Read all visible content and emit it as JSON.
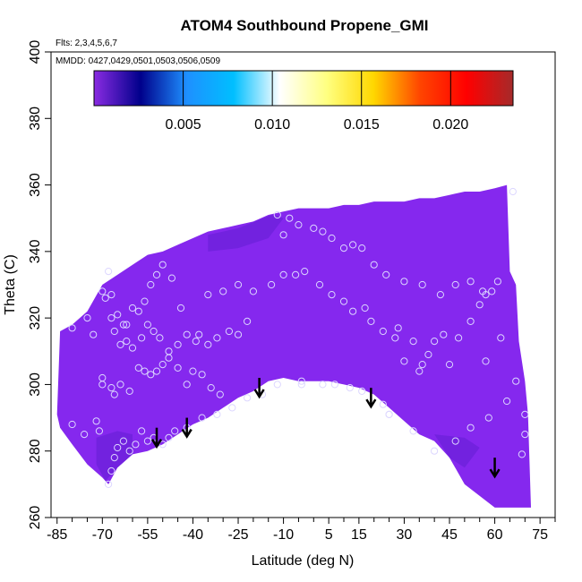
{
  "chart_data": {
    "type": "heatmap",
    "title": "ATOM4 Southbound Propene_GMI",
    "annotations": [
      "Flts: 2,3,4,5,6,7",
      "MMDD: 0427,0429,0501,0503,0506,0509"
    ],
    "xlabel": "Latitude (deg N)",
    "ylabel": "Theta (C)",
    "xlim": [
      -87,
      80
    ],
    "ylim": [
      260,
      400
    ],
    "x_ticks": [
      -85,
      -70,
      -55,
      -40,
      -25,
      -10,
      5,
      15,
      30,
      45,
      60,
      75
    ],
    "x_ticks_minor": [
      -80,
      -75,
      -65,
      -60,
      -50,
      -45,
      -35,
      -30,
      -20,
      -15,
      -5,
      0,
      10,
      20,
      25,
      35,
      40,
      50,
      55,
      65,
      70,
      80
    ],
    "y_ticks": [
      260,
      280,
      300,
      320,
      340,
      360,
      380,
      400
    ],
    "colorbar": {
      "range": [
        0,
        0.0235
      ],
      "ticks": [
        "0.005",
        "0.010",
        "0.015",
        "0.020"
      ],
      "tick_values": [
        0.005,
        0.01,
        0.015,
        0.02
      ],
      "colors": [
        "#8a2be2",
        "#00008b",
        "#1e90ff",
        "#00bfff",
        "#ffffff",
        "#ffff80",
        "#ffd700",
        "#ff4500",
        "#ff0000",
        "#a52a2a"
      ]
    },
    "field_color": "#8528ee",
    "field_dark_color": "#6a20d8",
    "field_top": [
      [
        -85,
        291
      ],
      [
        -84,
        316
      ],
      [
        -80,
        318
      ],
      [
        -75,
        322
      ],
      [
        -70,
        330
      ],
      [
        -65,
        333
      ],
      [
        -60,
        336
      ],
      [
        -55,
        339
      ],
      [
        -50,
        340
      ],
      [
        -45,
        342
      ],
      [
        -40,
        344
      ],
      [
        -35,
        346
      ],
      [
        -30,
        347
      ],
      [
        -25,
        348
      ],
      [
        -20,
        349
      ],
      [
        -15,
        351
      ],
      [
        -10,
        352
      ],
      [
        -5,
        353
      ],
      [
        0,
        353
      ],
      [
        5,
        353
      ],
      [
        10,
        354
      ],
      [
        15,
        354
      ],
      [
        20,
        355
      ],
      [
        25,
        355
      ],
      [
        30,
        355
      ],
      [
        35,
        356
      ],
      [
        40,
        356
      ],
      [
        45,
        357
      ],
      [
        50,
        358
      ],
      [
        55,
        358
      ],
      [
        60,
        359
      ],
      [
        64,
        360
      ],
      [
        65,
        334
      ],
      [
        67,
        330
      ],
      [
        68,
        313
      ],
      [
        70,
        301
      ],
      [
        71,
        291
      ],
      [
        72,
        263
      ]
    ],
    "field_bottom": [
      [
        72,
        263
      ],
      [
        60,
        263
      ],
      [
        50,
        270
      ],
      [
        45,
        278
      ],
      [
        40,
        283
      ],
      [
        35,
        285
      ],
      [
        30,
        289
      ],
      [
        25,
        293
      ],
      [
        20,
        297
      ],
      [
        15,
        299
      ],
      [
        10,
        300
      ],
      [
        5,
        301
      ],
      [
        0,
        301
      ],
      [
        -5,
        301
      ],
      [
        -10,
        302
      ],
      [
        -15,
        301
      ],
      [
        -20,
        298
      ],
      [
        -25,
        296
      ],
      [
        -30,
        293
      ],
      [
        -35,
        290
      ],
      [
        -40,
        288
      ],
      [
        -45,
        285
      ],
      [
        -50,
        282
      ],
      [
        -55,
        280
      ],
      [
        -60,
        279
      ],
      [
        -65,
        275
      ],
      [
        -68,
        270
      ],
      [
        -70,
        272
      ],
      [
        -75,
        276
      ],
      [
        -80,
        282
      ],
      [
        -84,
        287
      ],
      [
        -85,
        291
      ]
    ],
    "dark_patches": [
      [
        [
          -35,
          345
        ],
        [
          -25,
          347
        ],
        [
          -14,
          351
        ],
        [
          -10,
          350
        ],
        [
          -15,
          344
        ],
        [
          -25,
          341
        ],
        [
          -35,
          340
        ]
      ],
      [
        [
          -72,
          284
        ],
        [
          -65,
          286
        ],
        [
          -60,
          285
        ],
        [
          -60,
          279
        ],
        [
          -65,
          275
        ],
        [
          -69,
          271
        ],
        [
          -72,
          276
        ]
      ],
      [
        [
          40,
          285
        ],
        [
          50,
          284
        ],
        [
          55,
          281
        ],
        [
          50,
          275
        ],
        [
          45,
          278
        ]
      ]
    ],
    "points": [
      [
        -80,
        288
      ],
      [
        -76,
        285
      ],
      [
        -72,
        289
      ],
      [
        -71,
        286
      ],
      [
        -68,
        270
      ],
      [
        -67,
        274
      ],
      [
        -66,
        278
      ],
      [
        -65,
        281
      ],
      [
        -63,
        283
      ],
      [
        -61,
        280
      ],
      [
        -59,
        282
      ],
      [
        -57,
        286
      ],
      [
        -55,
        283
      ],
      [
        -53,
        284
      ],
      [
        -50,
        282
      ],
      [
        -48,
        284
      ],
      [
        -46,
        286
      ],
      [
        -42,
        287
      ],
      [
        -37,
        290
      ],
      [
        -32,
        291
      ],
      [
        -27,
        293
      ],
      [
        -22,
        296
      ],
      [
        -17,
        297
      ],
      [
        -12,
        300
      ],
      [
        -4,
        300
      ],
      [
        -4,
        301
      ],
      [
        3,
        300
      ],
      [
        7,
        300
      ],
      [
        12,
        299
      ],
      [
        16,
        298
      ],
      [
        23,
        294
      ],
      [
        25,
        291
      ],
      [
        25,
        291
      ],
      [
        33,
        286
      ],
      [
        40,
        280
      ],
      [
        47,
        283
      ],
      [
        52,
        287
      ],
      [
        58,
        290
      ],
      [
        64,
        295
      ],
      [
        67,
        301
      ],
      [
        69,
        279
      ],
      [
        70,
        285
      ],
      [
        70,
        291
      ],
      [
        -70,
        302
      ],
      [
        -70,
        300
      ],
      [
        -67,
        299
      ],
      [
        -66,
        297
      ],
      [
        -64,
        300
      ],
      [
        -61,
        298
      ],
      [
        -58,
        305
      ],
      [
        -56,
        304
      ],
      [
        -54,
        303
      ],
      [
        -52,
        304
      ],
      [
        -50,
        306
      ],
      [
        -48,
        310
      ],
      [
        -45,
        312
      ],
      [
        -42,
        315
      ],
      [
        -38,
        315
      ],
      [
        -35,
        312
      ],
      [
        -32,
        314
      ],
      [
        -28,
        316
      ],
      [
        -25,
        315
      ],
      [
        -22,
        319
      ],
      [
        -70,
        328
      ],
      [
        -69,
        326
      ],
      [
        -67,
        320
      ],
      [
        -66,
        316
      ],
      [
        -64,
        312
      ],
      [
        -62,
        318
      ],
      [
        -60,
        323
      ],
      [
        -58,
        322
      ],
      [
        -56,
        325
      ],
      [
        -54,
        330
      ],
      [
        -52,
        333
      ],
      [
        -50,
        336
      ],
      [
        -47,
        332
      ],
      [
        -44,
        323
      ],
      [
        -39,
        313
      ],
      [
        -35,
        327
      ],
      [
        -30,
        328
      ],
      [
        -25,
        330
      ],
      [
        -20,
        328
      ],
      [
        -14,
        330
      ],
      [
        -10,
        333
      ],
      [
        -6,
        333
      ],
      [
        -3,
        334
      ],
      [
        2,
        330
      ],
      [
        6,
        327
      ],
      [
        10,
        325
      ],
      [
        13,
        322
      ],
      [
        17,
        323
      ],
      [
        19,
        319
      ],
      [
        23,
        316
      ],
      [
        27,
        314
      ],
      [
        30,
        307
      ],
      [
        35,
        304
      ],
      [
        40,
        313
      ],
      [
        43,
        315
      ],
      [
        48,
        314
      ],
      [
        52,
        319
      ],
      [
        55,
        324
      ],
      [
        57,
        327
      ],
      [
        59,
        328
      ],
      [
        -68,
        334
      ],
      [
        -67,
        327
      ],
      [
        -65,
        321
      ],
      [
        -63,
        318
      ],
      [
        -62,
        313
      ],
      [
        -60,
        311
      ],
      [
        -57,
        314
      ],
      [
        -55,
        318
      ],
      [
        -53,
        316
      ],
      [
        -51,
        314
      ],
      [
        -48,
        308
      ],
      [
        -45,
        305
      ],
      [
        -42,
        300
      ],
      [
        -40,
        304
      ],
      [
        -37,
        303
      ],
      [
        -34,
        299
      ],
      [
        -31,
        297
      ],
      [
        -10,
        345
      ],
      [
        -5,
        348
      ],
      [
        0,
        347
      ],
      [
        3,
        346
      ],
      [
        6,
        344
      ],
      [
        10,
        341
      ],
      [
        13,
        342
      ],
      [
        16,
        341
      ],
      [
        20,
        336
      ],
      [
        24,
        333
      ],
      [
        30,
        331
      ],
      [
        36,
        330
      ],
      [
        42,
        327
      ],
      [
        47,
        330
      ],
      [
        52,
        331
      ],
      [
        56,
        328
      ],
      [
        61,
        331
      ],
      [
        66,
        358
      ],
      [
        -12,
        351
      ],
      [
        -8,
        350
      ],
      [
        28,
        317
      ],
      [
        33,
        313
      ],
      [
        38,
        309
      ],
      [
        36,
        306
      ],
      [
        45,
        306
      ],
      [
        57,
        307
      ],
      [
        62,
        314
      ],
      [
        -80,
        317
      ],
      [
        -75,
        320
      ],
      [
        -73,
        315
      ]
    ],
    "arrows": [
      [
        -52,
        287
      ],
      [
        -42,
        290
      ],
      [
        -18,
        302
      ],
      [
        19,
        299
      ],
      [
        60,
        278
      ]
    ]
  }
}
